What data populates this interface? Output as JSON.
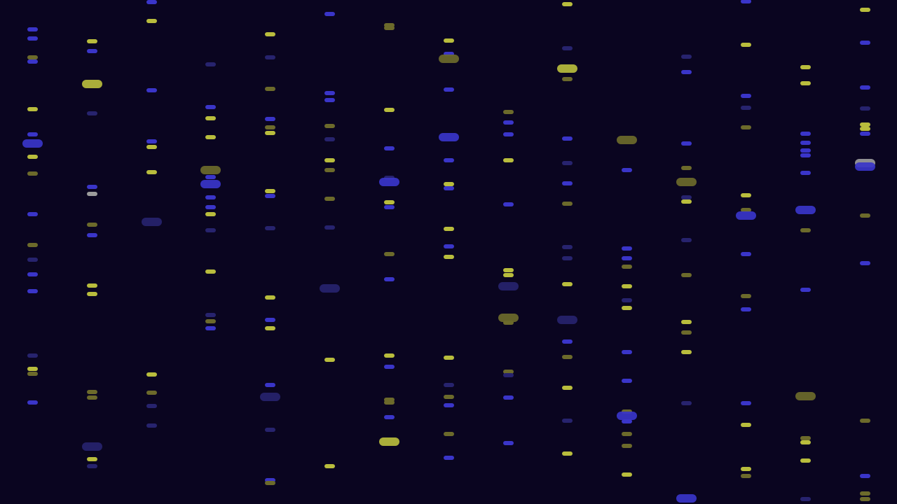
{
  "background": "#0a0520",
  "palette": {
    "b": "#3a35c9",
    "B": "#27236e",
    "y": "#b9bd3d",
    "Y": "#6c6a2b",
    "w": "#9c9c9c"
  }
}
